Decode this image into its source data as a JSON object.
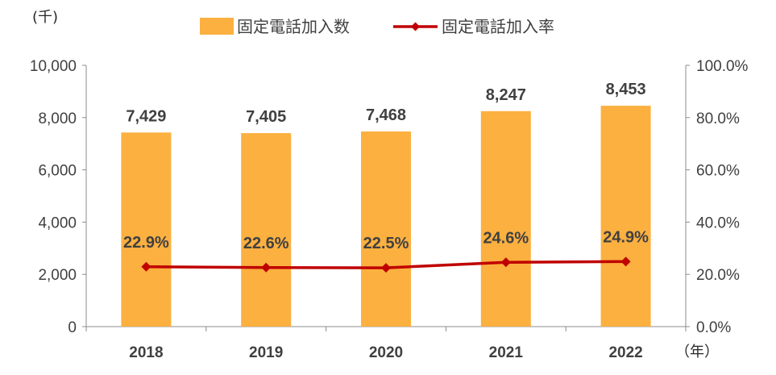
{
  "chart_data": {
    "type": "bar",
    "categories": [
      "2018",
      "2019",
      "2020",
      "2021",
      "2022"
    ],
    "series": [
      {
        "name": "固定電話加入数",
        "type": "bar",
        "axis": "left",
        "values": [
          7429,
          7405,
          7468,
          8247,
          8453
        ],
        "labels": [
          "7,429",
          "7,405",
          "7,468",
          "8,247",
          "8,453"
        ],
        "color": "#FBB040"
      },
      {
        "name": "固定電話加入率",
        "type": "line",
        "axis": "right",
        "values": [
          22.9,
          22.6,
          22.5,
          24.6,
          24.9
        ],
        "labels": [
          "22.9%",
          "22.6%",
          "22.5%",
          "24.6%",
          "24.9%"
        ],
        "color": "#C00000"
      }
    ],
    "y_left": {
      "unit": "(千)",
      "ylim": [
        0,
        10000
      ],
      "ticks": [
        0,
        2000,
        4000,
        6000,
        8000,
        10000
      ],
      "tick_labels": [
        "0",
        "2,000",
        "4,000",
        "6,000",
        "8,000",
        "10,000"
      ]
    },
    "y_right": {
      "ylim": [
        0,
        100
      ],
      "ticks": [
        0,
        20,
        40,
        60,
        80,
        100
      ],
      "tick_labels": [
        "0.0%",
        "20.0%",
        "40.0%",
        "60.0%",
        "80.0%",
        "100.0%"
      ]
    },
    "x_unit": "（年）",
    "legend_position": "top-center",
    "grid": false
  }
}
